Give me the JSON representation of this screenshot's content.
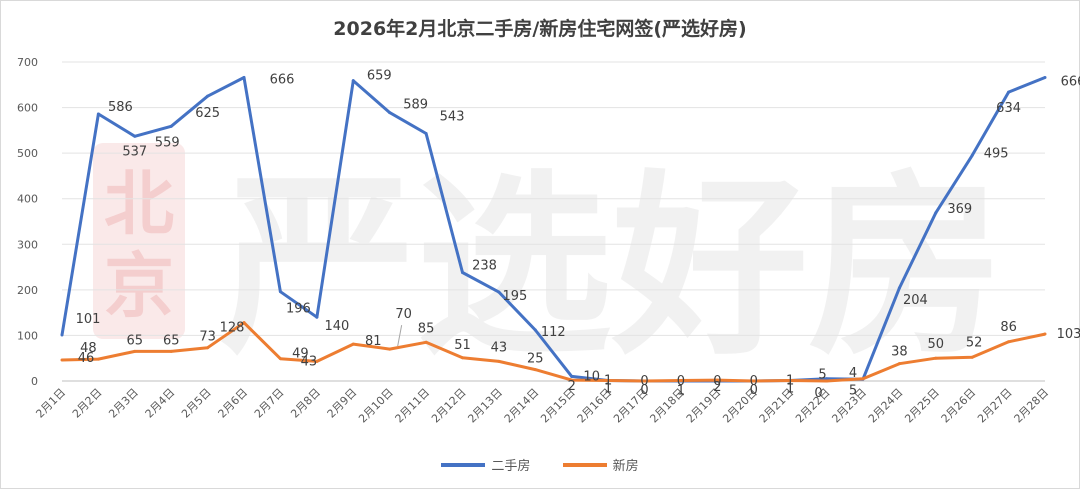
{
  "watermark": {
    "stamp_text": "北京",
    "brand_text": "严选好房"
  },
  "chart_data": {
    "type": "line",
    "title": "2026年2月北京二手房/新房住宅网签(严选好房)",
    "categories": [
      "2月1日",
      "2月2日",
      "2月3日",
      "2月4日",
      "2月5日",
      "2月6日",
      "2月7日",
      "2月8日",
      "2月9日",
      "2月10日",
      "2月11日",
      "2月12日",
      "2月13日",
      "2月14日",
      "2月15日",
      "2月16日",
      "2月17日",
      "2月18日",
      "2月19日",
      "2月20日",
      "2月21日",
      "2月22日",
      "2月23日",
      "2月24日",
      "2月25日",
      "2月26日",
      "2月27日",
      "2月28日"
    ],
    "ylim": [
      0,
      700
    ],
    "yticks": [
      0,
      100,
      200,
      300,
      400,
      500,
      600,
      700
    ],
    "grid": true,
    "legend_position": "bottom",
    "series": [
      {
        "name": "二手房",
        "color": "#4472C4",
        "values": [
          101,
          586,
          537,
          559,
          625,
          666,
          196,
          140,
          659,
          589,
          543,
          238,
          195,
          112,
          10,
          1,
          0,
          0,
          0,
          0,
          1,
          5,
          4,
          204,
          369,
          495,
          634,
          666
        ]
      },
      {
        "name": "新房",
        "color": "#ED7D31",
        "values": [
          46,
          48,
          65,
          65,
          73,
          128,
          49,
          43,
          81,
          70,
          85,
          51,
          43,
          25,
          2,
          1,
          0,
          1,
          2,
          0,
          1,
          0,
          5,
          38,
          50,
          52,
          86,
          103
        ]
      }
    ]
  }
}
